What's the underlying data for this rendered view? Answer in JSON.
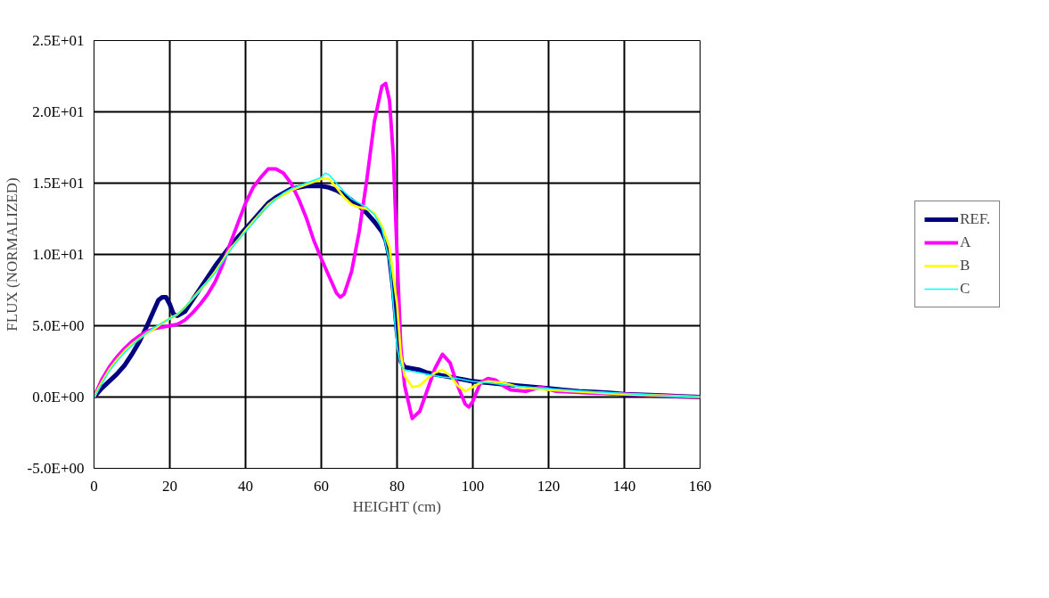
{
  "chart_data": {
    "type": "line",
    "xlabel": "HEIGHT (cm)",
    "ylabel": "FLUX (NORMALIZED)",
    "xlim": [
      0,
      160
    ],
    "xticks": [
      0,
      20,
      40,
      60,
      80,
      100,
      120,
      140,
      160
    ],
    "ylim": [
      -5,
      25
    ],
    "yticks": [
      {
        "value": -5,
        "label": "-5.0E+00"
      },
      {
        "value": 0,
        "label": "0.0E+00"
      },
      {
        "value": 5,
        "label": "5.0E+00"
      },
      {
        "value": 10,
        "label": "1.0E+01"
      },
      {
        "value": 15,
        "label": "1.5E+01"
      },
      {
        "value": 20,
        "label": "2.0E+01"
      },
      {
        "value": 25,
        "label": "2.5E+01"
      }
    ],
    "grid": true,
    "legend": "right",
    "marker": "none",
    "line_style": "solid",
    "series": [
      {
        "name": "REF.",
        "color": "#000080",
        "x": [
          0,
          2,
          4,
          6,
          8,
          10,
          12,
          14,
          16,
          17,
          18,
          19,
          20,
          21,
          22,
          24,
          26,
          28,
          30,
          32,
          34,
          36,
          38,
          40,
          42,
          44,
          46,
          48,
          50,
          52,
          54,
          56,
          58,
          60,
          62,
          64,
          66,
          68,
          70,
          72,
          74,
          76,
          77,
          78,
          79,
          80,
          81,
          82,
          84,
          86,
          88,
          90,
          92,
          94,
          96,
          98,
          100,
          104,
          108,
          112,
          116,
          120,
          124,
          128,
          132,
          136,
          140,
          145,
          150,
          155,
          160
        ],
        "values": [
          0,
          0.6,
          1.1,
          1.6,
          2.2,
          3.0,
          3.9,
          5.0,
          6.2,
          6.8,
          7.0,
          7.0,
          6.5,
          5.8,
          5.7,
          6.0,
          6.8,
          7.6,
          8.4,
          9.2,
          9.9,
          10.6,
          11.2,
          11.8,
          12.4,
          13.0,
          13.6,
          14.0,
          14.3,
          14.6,
          14.7,
          14.8,
          14.8,
          14.8,
          14.7,
          14.5,
          14.2,
          13.8,
          13.4,
          12.9,
          12.3,
          11.6,
          11.0,
          9.8,
          7.5,
          4.5,
          2.5,
          2.1,
          2.0,
          1.9,
          1.7,
          1.6,
          1.5,
          1.4,
          1.3,
          1.2,
          1.1,
          1.0,
          0.9,
          0.8,
          0.7,
          0.6,
          0.5,
          0.4,
          0.35,
          0.3,
          0.2,
          0.15,
          0.1,
          0.05,
          0
        ]
      },
      {
        "name": "A",
        "color": "#ff00ff",
        "x": [
          0,
          2,
          4,
          6,
          8,
          10,
          12,
          14,
          16,
          18,
          20,
          22,
          24,
          26,
          28,
          30,
          32,
          34,
          36,
          38,
          40,
          42,
          44,
          46,
          48,
          50,
          52,
          54,
          56,
          58,
          60,
          62,
          64,
          65,
          66,
          68,
          70,
          72,
          74,
          76,
          77,
          78,
          79,
          80,
          81,
          82,
          84,
          86,
          88,
          90,
          92,
          94,
          96,
          98,
          99,
          100,
          102,
          104,
          106,
          108,
          110,
          114,
          118,
          122,
          130,
          140,
          150,
          160
        ],
        "values": [
          0,
          1.2,
          2.1,
          2.8,
          3.4,
          3.9,
          4.3,
          4.6,
          4.8,
          4.9,
          5.0,
          5.1,
          5.4,
          5.9,
          6.5,
          7.2,
          8.1,
          9.3,
          10.8,
          12.2,
          13.6,
          14.7,
          15.4,
          16.0,
          16.0,
          15.7,
          15.0,
          13.9,
          12.6,
          11.0,
          9.7,
          8.5,
          7.3,
          7.0,
          7.2,
          8.8,
          11.6,
          15.2,
          19.3,
          21.8,
          22.0,
          20.8,
          17.0,
          10.0,
          3.5,
          0.8,
          -1.5,
          -1.0,
          0.5,
          2.0,
          3.0,
          2.4,
          0.8,
          -0.5,
          -0.7,
          -0.3,
          1.0,
          1.3,
          1.2,
          0.8,
          0.5,
          0.4,
          0.7,
          0.4,
          0.3,
          0.2,
          0.1,
          0
        ]
      },
      {
        "name": "B",
        "color": "#ffff00",
        "x": [
          0,
          2,
          4,
          6,
          8,
          10,
          12,
          14,
          16,
          18,
          20,
          22,
          24,
          26,
          28,
          30,
          32,
          34,
          36,
          38,
          40,
          42,
          44,
          46,
          48,
          50,
          52,
          54,
          56,
          58,
          60,
          62,
          64,
          66,
          68,
          70,
          72,
          74,
          76,
          78,
          80,
          81,
          82,
          84,
          86,
          88,
          90,
          92,
          94,
          96,
          98,
          100,
          102,
          104,
          108,
          112,
          120,
          130,
          140,
          150,
          160
        ],
        "values": [
          0,
          1.0,
          1.9,
          2.6,
          3.2,
          3.7,
          4.1,
          4.5,
          4.8,
          5.2,
          5.5,
          5.8,
          6.3,
          6.9,
          7.5,
          8.1,
          8.8,
          9.6,
          10.4,
          11.0,
          11.7,
          12.3,
          12.9,
          13.5,
          13.9,
          14.2,
          14.5,
          14.7,
          14.9,
          15.1,
          15.3,
          15.3,
          14.7,
          14.0,
          13.5,
          13.3,
          13.2,
          12.9,
          12.0,
          10.5,
          6.5,
          3.0,
          1.5,
          0.7,
          0.8,
          1.3,
          1.7,
          1.9,
          1.5,
          0.8,
          0.4,
          0.7,
          1.0,
          1.1,
          1.0,
          0.7,
          0.5,
          0.35,
          0.2,
          0.1,
          0
        ]
      },
      {
        "name": "C",
        "color": "#00ffff",
        "x": [
          0,
          2,
          4,
          6,
          8,
          10,
          12,
          14,
          16,
          18,
          20,
          22,
          24,
          26,
          28,
          30,
          32,
          34,
          36,
          38,
          40,
          42,
          44,
          46,
          48,
          50,
          52,
          54,
          56,
          58,
          60,
          61,
          62,
          64,
          66,
          68,
          70,
          72,
          74,
          76,
          78,
          79,
          80,
          81,
          82,
          84,
          86,
          88,
          90,
          92,
          96,
          100,
          104,
          110,
          120,
          130,
          140,
          150,
          155,
          160
        ],
        "values": [
          0,
          0.9,
          1.8,
          2.5,
          3.1,
          3.6,
          4.1,
          4.5,
          4.9,
          5.2,
          5.5,
          5.8,
          6.3,
          6.9,
          7.5,
          8.1,
          8.7,
          9.5,
          10.3,
          11.0,
          11.6,
          12.2,
          12.9,
          13.4,
          13.9,
          14.3,
          14.6,
          14.8,
          15.0,
          15.2,
          15.4,
          15.7,
          15.6,
          15.0,
          14.4,
          13.9,
          13.6,
          13.3,
          12.8,
          11.8,
          9.5,
          6.5,
          3.5,
          2.2,
          1.9,
          1.8,
          1.7,
          1.6,
          1.5,
          1.4,
          1.3,
          1.1,
          1.0,
          0.8,
          0.6,
          0.4,
          0.25,
          0.1,
          0.05,
          0
        ]
      }
    ]
  }
}
